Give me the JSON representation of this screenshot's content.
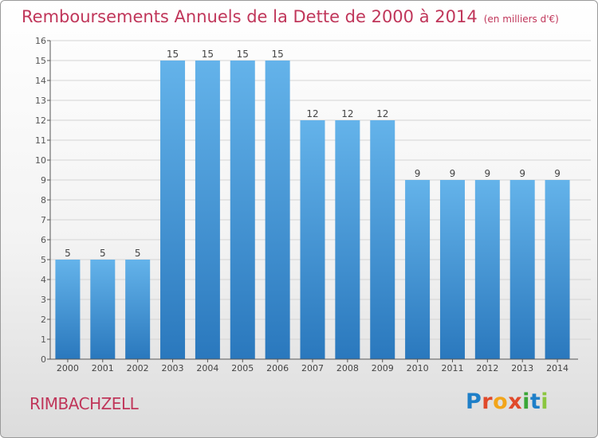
{
  "title": "Remboursements Annuels de la Dette de 2000 à 2014",
  "subtitle": "(en milliers d'€)",
  "commune": "RIMBACHZELL",
  "logo": {
    "letters": [
      "P",
      "r",
      "o",
      "x",
      "i",
      "t",
      "i"
    ],
    "colors": [
      "#1e7fc8",
      "#e0492a",
      "#f2a51a",
      "#e0492a",
      "#3aa637",
      "#1e7fc8",
      "#8bc63f"
    ]
  },
  "colors": {
    "title": "#c0365a",
    "bar_light": "#64b3ea",
    "bar_dark": "#2a78bd",
    "grid": "#d4d4d4",
    "axis": "#555555"
  },
  "chart_data": {
    "type": "bar",
    "categories": [
      "2000",
      "2001",
      "2002",
      "2003",
      "2004",
      "2005",
      "2006",
      "2007",
      "2008",
      "2009",
      "2010",
      "2011",
      "2012",
      "2013",
      "2014"
    ],
    "values": [
      5,
      5,
      5,
      15,
      15,
      15,
      15,
      12,
      12,
      12,
      9,
      9,
      9,
      9,
      9
    ],
    "ylim": [
      0,
      16
    ],
    "yticks": [
      0,
      1,
      2,
      3,
      4,
      5,
      6,
      7,
      8,
      9,
      10,
      11,
      12,
      13,
      14,
      15,
      16
    ],
    "grid": true,
    "data_labels": true
  }
}
